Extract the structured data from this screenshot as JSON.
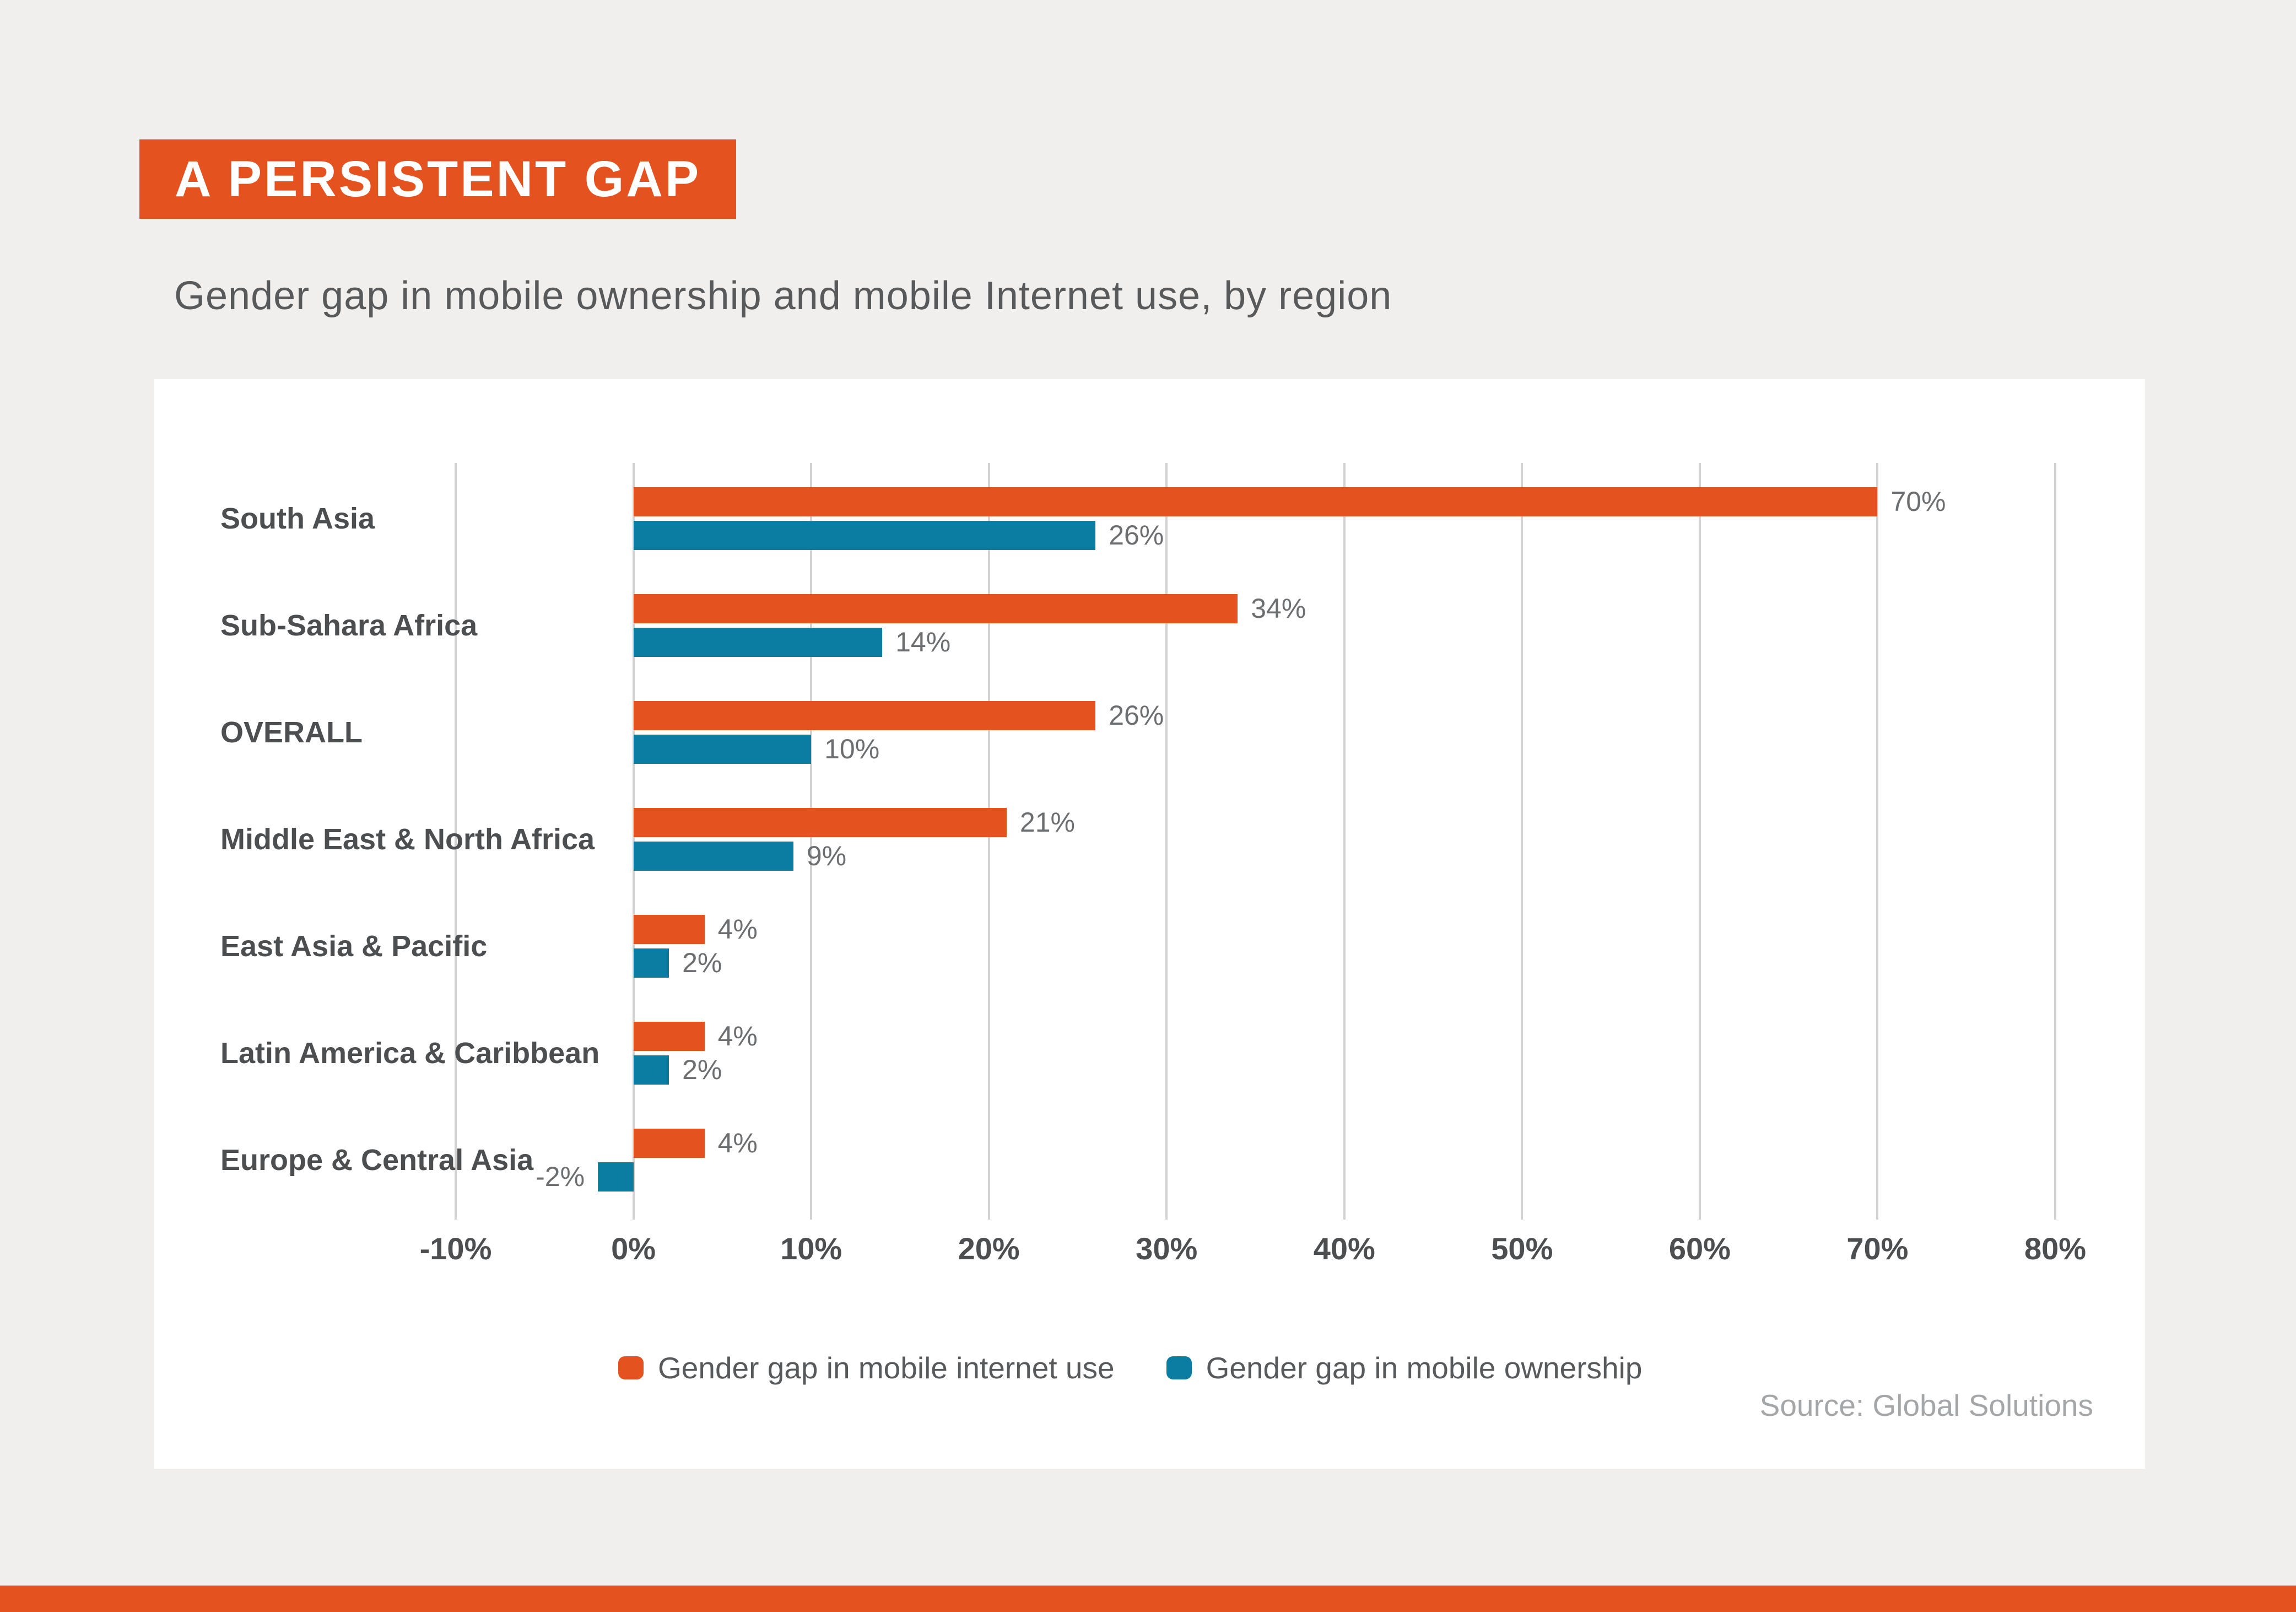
{
  "page": {
    "title": "A PERSISTENT GAP",
    "subtitle": "Gender gap in mobile ownership and mobile Internet use, by region",
    "source": "Source: Global Solutions"
  },
  "legend": {
    "items": [
      {
        "label": "Gender gap in mobile internet use",
        "color": "#e4521f"
      },
      {
        "label": "Gender gap in mobile ownership",
        "color": "#0b7da3"
      }
    ]
  },
  "colors": {
    "accent_orange": "#e4521f",
    "accent_blue": "#0b7da3",
    "background": "#f0efed",
    "panel": "#ffffff",
    "gridline": "#d2d2d2",
    "text_dark": "#4d4e50",
    "text_medium": "#58595b",
    "text_value": "#6d6e70",
    "text_source": "#a5a6a8"
  },
  "chart_data": {
    "type": "bar",
    "orientation": "horizontal",
    "title": "A PERSISTENT GAP",
    "subtitle": "Gender gap in mobile ownership and mobile Internet use, by region",
    "categories": [
      "South Asia",
      "Sub-Sahara Africa",
      "OVERALL",
      "Middle East & North Africa",
      "East Asia & Pacific",
      "Latin America & Caribbean",
      "Europe & Central Asia"
    ],
    "series": [
      {
        "name": "Gender gap in mobile internet use",
        "color": "#e4521f",
        "values": [
          70,
          34,
          26,
          21,
          4,
          4,
          4
        ],
        "labels": [
          "70%",
          "34%",
          "26%",
          "21%",
          "4%",
          "4%",
          "4%"
        ]
      },
      {
        "name": "Gender gap in mobile ownership",
        "color": "#0b7da3",
        "values": [
          26,
          14,
          10,
          9,
          2,
          2,
          -2
        ],
        "labels": [
          "26%",
          "14%",
          "10%",
          "9%",
          "2%",
          "2%",
          "-2%"
        ]
      }
    ],
    "xlim": [
      -10,
      80
    ],
    "ticks": [
      {
        "value": -10,
        "label": "-10%"
      },
      {
        "value": 0,
        "label": "0%"
      },
      {
        "value": 10,
        "label": "10%"
      },
      {
        "value": 20,
        "label": "20%"
      },
      {
        "value": 30,
        "label": "30%"
      },
      {
        "value": 40,
        "label": "40%"
      },
      {
        "value": 50,
        "label": "50%"
      },
      {
        "value": 60,
        "label": "60%"
      },
      {
        "value": 70,
        "label": "70%"
      },
      {
        "value": 80,
        "label": "80%"
      }
    ],
    "grid": "vertical-gridlines-on",
    "legend_position": "bottom"
  }
}
